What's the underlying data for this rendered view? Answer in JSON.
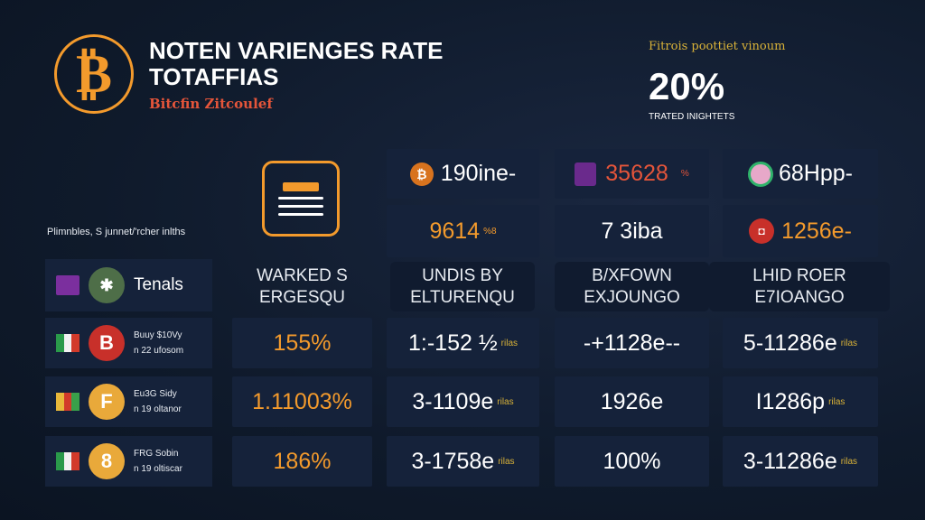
{
  "header": {
    "title_line1": "NOTEN VARIENGES RATE",
    "title_line2": "TOTAFFIAS",
    "subtitle": "Bitcfin Zitcoulef",
    "logo_icon": "bitcoin-icon"
  },
  "stat": {
    "label": "Fitrois poottiet vinoum",
    "value": "20%",
    "caption": "TRATED INIGHTETS"
  },
  "section_label": "Plimnbles, S junnet/'rcher inlths",
  "colors": {
    "accent": "#f39a2c",
    "red": "#e5553a",
    "background": "#0f1a2b",
    "card": "#15223a"
  },
  "top_cells": [
    {
      "icon": "bitcoin-coin-icon",
      "value": "190ine-"
    },
    {
      "icon": "purple-token-icon",
      "value": "35628",
      "suffix": "%"
    },
    {
      "icon": "green-token-icon",
      "value": "68Hpp-"
    }
  ],
  "second_cells": [
    {
      "value": "9614",
      "suffix": "%8"
    },
    {
      "value": "7 3iba"
    },
    {
      "icon": "red-token-icon",
      "value": "1256e-"
    }
  ],
  "headers": [
    {
      "l1": "WARKED S",
      "l2": "ERGESQU"
    },
    {
      "l1": "UNDIS BY",
      "l2": "ELTURENQU"
    },
    {
      "l1": "B/XFOWN",
      "l2": "EXJOUNGO"
    },
    {
      "l1": "LHID ROER",
      "l2": "E7IOANGO"
    }
  ],
  "left_header": {
    "label": "Tenals",
    "icon": "bluetooth-coin-icon"
  },
  "rows": [
    {
      "l1": "Buuy $10Vy",
      "l2": "n 22 ufosom",
      "coin": "B",
      "coin_color": "#c8302a",
      "cells": [
        "155%",
        "1:-152 ½",
        "-+1128e--",
        "5-11286e"
      ],
      "notes": [
        "",
        "rilas",
        "",
        "rilas"
      ]
    },
    {
      "l1": "Eu3G Sidy",
      "l2": "n 19 oltanor",
      "coin": "F",
      "coin_color": "#e9a93a",
      "cells": [
        "1.11003%",
        "3-1109e",
        "1926e",
        "I1286p"
      ],
      "notes": [
        "",
        "rilas",
        "",
        "rilas"
      ]
    },
    {
      "l1": "FRG Sobin",
      "l2": "n 19 oltiscar",
      "coin": "8",
      "coin_color": "#e9a93a",
      "cells": [
        "186%",
        "3-1758e",
        "100%",
        "3-11286e"
      ],
      "notes": [
        "",
        "rilas",
        "",
        "rilas"
      ]
    }
  ]
}
